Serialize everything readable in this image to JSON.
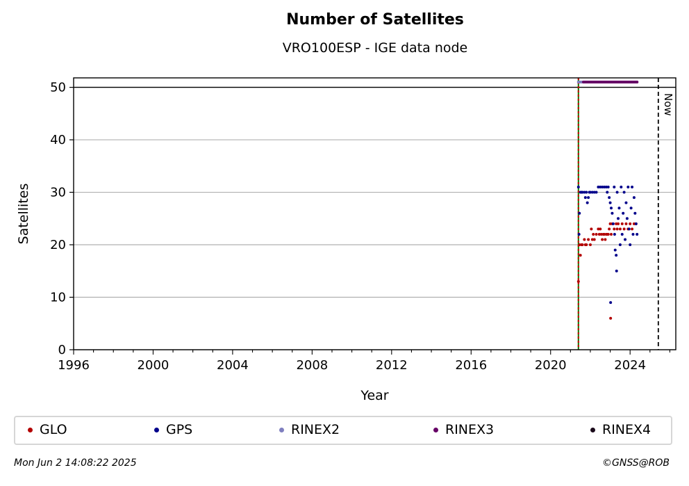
{
  "chart_data": {
    "type": "scatter",
    "title": "Number of Satellites",
    "subtitle": "VRO100ESP - IGE data node",
    "xlabel": "Year",
    "ylabel": "Satellites",
    "xlim": [
      1996,
      2026.3
    ],
    "ylim": [
      0,
      51.8
    ],
    "xticks": [
      1996,
      2000,
      2004,
      2008,
      2012,
      2016,
      2020,
      2024
    ],
    "yticks": [
      0,
      10,
      20,
      30,
      40,
      50
    ],
    "grid": "horizontal",
    "legend_position": "bottom",
    "now_label": "Now",
    "now_year": 2025.42,
    "start_line_year": 2021.4,
    "reference_line_y": 50,
    "series": [
      {
        "name": "GLO",
        "color": "#b30000",
        "points": [
          [
            2021.4,
            13
          ],
          [
            2021.45,
            20
          ],
          [
            2021.5,
            18
          ],
          [
            2021.55,
            20
          ],
          [
            2021.6,
            20
          ],
          [
            2021.7,
            21
          ],
          [
            2021.75,
            20
          ],
          [
            2021.8,
            20
          ],
          [
            2021.9,
            21
          ],
          [
            2022.0,
            20
          ],
          [
            2022.05,
            23
          ],
          [
            2022.1,
            21
          ],
          [
            2022.15,
            22
          ],
          [
            2022.2,
            21
          ],
          [
            2022.3,
            22
          ],
          [
            2022.4,
            23
          ],
          [
            2022.45,
            22
          ],
          [
            2022.5,
            23
          ],
          [
            2022.55,
            22
          ],
          [
            2022.6,
            21
          ],
          [
            2022.65,
            22
          ],
          [
            2022.7,
            22
          ],
          [
            2022.75,
            21
          ],
          [
            2022.8,
            22
          ],
          [
            2022.85,
            22
          ],
          [
            2022.9,
            22
          ],
          [
            2022.95,
            23
          ],
          [
            2023.0,
            24
          ],
          [
            2023.02,
            6
          ],
          [
            2023.05,
            22
          ],
          [
            2023.1,
            24
          ],
          [
            2023.2,
            23
          ],
          [
            2023.3,
            24
          ],
          [
            2023.35,
            23
          ],
          [
            2023.4,
            24
          ],
          [
            2023.5,
            23
          ],
          [
            2023.6,
            24
          ],
          [
            2023.7,
            23
          ],
          [
            2023.8,
            24
          ],
          [
            2023.9,
            23
          ],
          [
            2024.0,
            24
          ],
          [
            2024.1,
            23
          ],
          [
            2024.2,
            24
          ],
          [
            2024.3,
            24
          ]
        ]
      },
      {
        "name": "GPS",
        "color": "#00008b",
        "points": [
          [
            2021.4,
            31
          ],
          [
            2021.43,
            22
          ],
          [
            2021.45,
            26
          ],
          [
            2021.5,
            30
          ],
          [
            2021.55,
            30
          ],
          [
            2021.6,
            30
          ],
          [
            2021.7,
            30
          ],
          [
            2021.75,
            29
          ],
          [
            2021.8,
            30
          ],
          [
            2021.85,
            28
          ],
          [
            2021.9,
            29
          ],
          [
            2021.95,
            30
          ],
          [
            2022.0,
            30
          ],
          [
            2022.1,
            30
          ],
          [
            2022.2,
            30
          ],
          [
            2022.3,
            30
          ],
          [
            2022.4,
            31
          ],
          [
            2022.5,
            31
          ],
          [
            2022.6,
            31
          ],
          [
            2022.7,
            31
          ],
          [
            2022.8,
            31
          ],
          [
            2022.85,
            30
          ],
          [
            2022.9,
            31
          ],
          [
            2022.95,
            29
          ],
          [
            2023.0,
            28
          ],
          [
            2023.02,
            9
          ],
          [
            2023.05,
            27
          ],
          [
            2023.1,
            26
          ],
          [
            2023.15,
            24
          ],
          [
            2023.2,
            31
          ],
          [
            2023.22,
            22
          ],
          [
            2023.25,
            19
          ],
          [
            2023.3,
            18
          ],
          [
            2023.32,
            15
          ],
          [
            2023.35,
            30
          ],
          [
            2023.4,
            25
          ],
          [
            2023.45,
            27
          ],
          [
            2023.5,
            20
          ],
          [
            2023.55,
            31
          ],
          [
            2023.6,
            22
          ],
          [
            2023.65,
            26
          ],
          [
            2023.7,
            30
          ],
          [
            2023.75,
            21
          ],
          [
            2023.8,
            28
          ],
          [
            2023.85,
            25
          ],
          [
            2023.9,
            31
          ],
          [
            2023.95,
            23
          ],
          [
            2024.0,
            20
          ],
          [
            2024.05,
            27
          ],
          [
            2024.1,
            31
          ],
          [
            2024.15,
            22
          ],
          [
            2024.2,
            29
          ],
          [
            2024.25,
            26
          ],
          [
            2024.3,
            24
          ],
          [
            2024.35,
            22
          ]
        ]
      },
      {
        "name": "RINEX2",
        "color": "#7f7fbf",
        "points": [
          [
            2021.4,
            51
          ],
          [
            2021.55,
            51
          ]
        ]
      },
      {
        "name": "RINEX3",
        "color": "#660066",
        "points": [
          [
            2021.65,
            51
          ],
          [
            2021.8,
            51
          ],
          [
            2021.95,
            51
          ],
          [
            2022.1,
            51
          ],
          [
            2022.25,
            51
          ],
          [
            2022.4,
            51
          ],
          [
            2022.55,
            51
          ],
          [
            2022.7,
            51
          ],
          [
            2022.85,
            51
          ],
          [
            2023.0,
            51
          ],
          [
            2023.15,
            51
          ],
          [
            2023.3,
            51
          ],
          [
            2023.45,
            51
          ],
          [
            2023.6,
            51
          ],
          [
            2023.75,
            51
          ],
          [
            2023.9,
            51
          ],
          [
            2024.05,
            51
          ],
          [
            2024.2,
            51
          ],
          [
            2024.35,
            51
          ]
        ]
      },
      {
        "name": "RINEX4",
        "color": "#1a0a1a",
        "points": []
      }
    ]
  },
  "footer": {
    "timestamp": "Mon Jun  2 14:08:22 2025",
    "credit": "©GNSS@ROB"
  }
}
